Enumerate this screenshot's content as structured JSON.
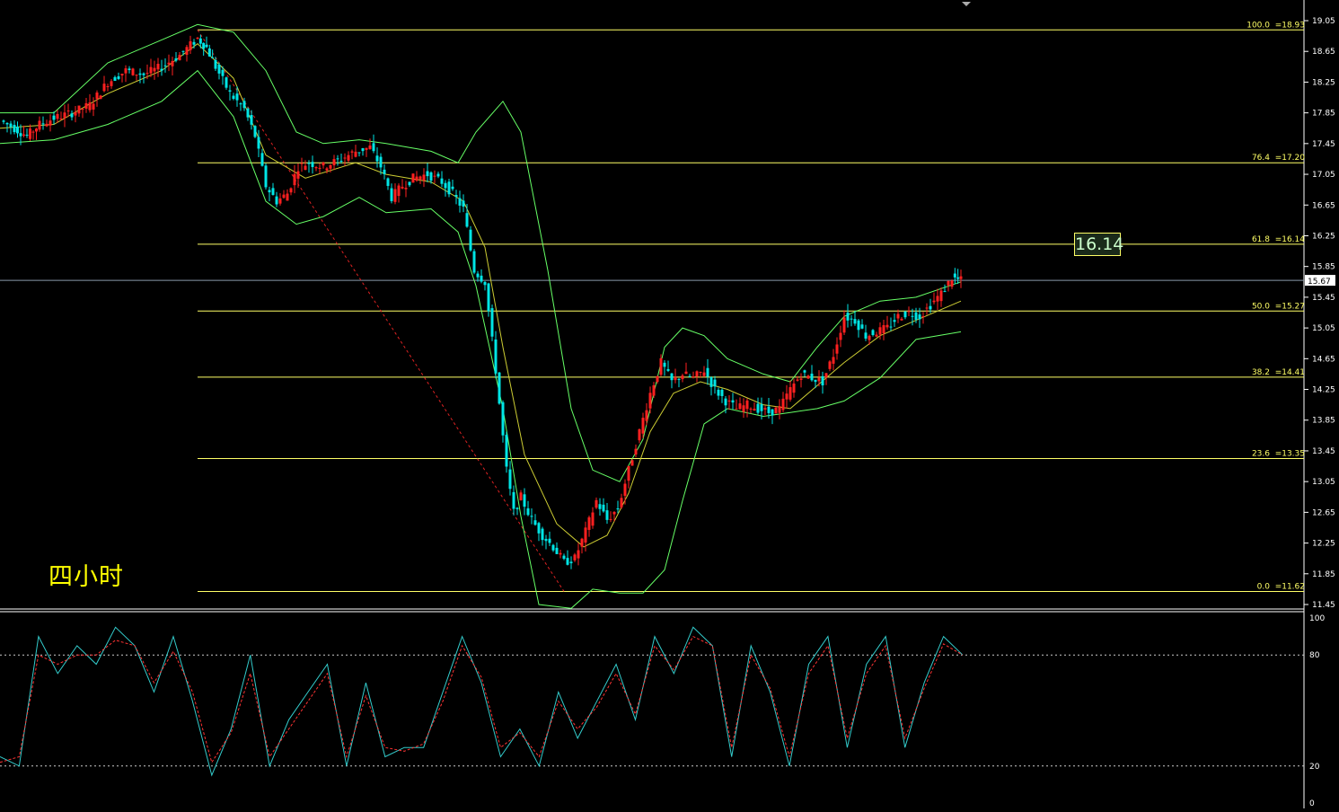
{
  "timeframe_label": "四小时",
  "price_marker": "16.14",
  "current_price_tag": "15.67",
  "colors": {
    "background": "#000000",
    "candle_up": "#ff2020",
    "candle_down": "#00e5e5",
    "fib_line": "#ffff66",
    "bollinger": "#66ff66",
    "stoch_k": "#33cccc",
    "stoch_d": "#ff3333",
    "axis_text": "#ffffff"
  },
  "chart_data": [
    {
      "type": "candlestick",
      "title": "",
      "ylim": [
        11.45,
        19.2
      ],
      "y_ticks": [
        "19.05",
        "18.65",
        "18.25",
        "17.85",
        "17.45",
        "17.05",
        "16.65",
        "16.25",
        "15.85",
        "15.45",
        "15.05",
        "14.65",
        "14.25",
        "13.85",
        "13.45",
        "13.05",
        "12.65",
        "12.25",
        "11.85",
        "11.45"
      ],
      "last_price": 15.67,
      "fibonacci_levels": [
        {
          "label": "100.0",
          "price_text": "=18.93",
          "value": 18.93
        },
        {
          "label": "76.4",
          "price_text": "=17.20",
          "value": 17.2
        },
        {
          "label": "61.8",
          "price_text": "=16.14",
          "value": 16.14
        },
        {
          "label": "50.0",
          "price_text": "=15.27",
          "value": 15.27
        },
        {
          "label": "38.2",
          "price_text": "=14.41",
          "value": 14.41
        },
        {
          "label": "23.6",
          "price_text": "=13.35",
          "value": 13.35
        },
        {
          "label": "0.0",
          "price_text": "=11.62",
          "value": 11.62
        }
      ],
      "close_path": [
        [
          0,
          17.75
        ],
        [
          8,
          17.65
        ],
        [
          15,
          17.55
        ],
        [
          22,
          17.7
        ],
        [
          30,
          17.78
        ],
        [
          40,
          17.85
        ],
        [
          50,
          17.95
        ],
        [
          60,
          18.25
        ],
        [
          70,
          18.4
        ],
        [
          80,
          18.35
        ],
        [
          90,
          18.45
        ],
        [
          100,
          18.6
        ],
        [
          110,
          18.82
        ],
        [
          115,
          18.7
        ],
        [
          120,
          18.45
        ],
        [
          128,
          18.1
        ],
        [
          136,
          17.9
        ],
        [
          142,
          17.55
        ],
        [
          148,
          16.9
        ],
        [
          154,
          16.7
        ],
        [
          160,
          16.8
        ],
        [
          166,
          17.15
        ],
        [
          172,
          17.2
        ],
        [
          180,
          17.15
        ],
        [
          190,
          17.25
        ],
        [
          198,
          17.35
        ],
        [
          206,
          17.4
        ],
        [
          212,
          17.15
        ],
        [
          218,
          16.75
        ],
        [
          224,
          16.9
        ],
        [
          230,
          17.0
        ],
        [
          238,
          17.05
        ],
        [
          246,
          16.95
        ],
        [
          252,
          16.8
        ],
        [
          258,
          16.6
        ],
        [
          264,
          15.8
        ],
        [
          270,
          15.65
        ],
        [
          276,
          14.5
        ],
        [
          282,
          13.2
        ],
        [
          286,
          12.65
        ],
        [
          290,
          12.85
        ],
        [
          296,
          12.55
        ],
        [
          302,
          12.35
        ],
        [
          308,
          12.2
        ],
        [
          314,
          12.0
        ],
        [
          320,
          12.05
        ],
        [
          326,
          12.4
        ],
        [
          332,
          12.8
        ],
        [
          338,
          12.55
        ],
        [
          344,
          12.7
        ],
        [
          350,
          13.2
        ],
        [
          356,
          13.7
        ],
        [
          362,
          14.2
        ],
        [
          368,
          14.6
        ],
        [
          374,
          14.35
        ],
        [
          380,
          14.45
        ],
        [
          386,
          14.4
        ],
        [
          392,
          14.5
        ],
        [
          398,
          14.25
        ],
        [
          404,
          14.1
        ],
        [
          410,
          14.0
        ],
        [
          416,
          14.05
        ],
        [
          422,
          14.0
        ],
        [
          428,
          13.95
        ],
        [
          434,
          14.0
        ],
        [
          440,
          14.25
        ],
        [
          446,
          14.45
        ],
        [
          452,
          14.4
        ],
        [
          458,
          14.35
        ],
        [
          464,
          14.7
        ],
        [
          470,
          15.2
        ],
        [
          476,
          15.15
        ],
        [
          482,
          14.95
        ],
        [
          488,
          15.0
        ],
        [
          494,
          15.05
        ],
        [
          500,
          15.2
        ],
        [
          506,
          15.25
        ],
        [
          512,
          15.2
        ],
        [
          518,
          15.35
        ],
        [
          524,
          15.5
        ],
        [
          530,
          15.7
        ],
        [
          535,
          15.67
        ]
      ],
      "bollinger_mid_path": [
        [
          0,
          17.65
        ],
        [
          30,
          17.7
        ],
        [
          60,
          18.1
        ],
        [
          90,
          18.4
        ],
        [
          110,
          18.75
        ],
        [
          130,
          18.3
        ],
        [
          148,
          17.3
        ],
        [
          170,
          17.0
        ],
        [
          198,
          17.2
        ],
        [
          215,
          17.05
        ],
        [
          240,
          16.95
        ],
        [
          258,
          16.7
        ],
        [
          270,
          16.1
        ],
        [
          280,
          14.8
        ],
        [
          292,
          13.4
        ],
        [
          310,
          12.5
        ],
        [
          325,
          12.2
        ],
        [
          338,
          12.35
        ],
        [
          350,
          12.9
        ],
        [
          362,
          13.7
        ],
        [
          375,
          14.2
        ],
        [
          390,
          14.35
        ],
        [
          405,
          14.25
        ],
        [
          425,
          14.05
        ],
        [
          440,
          14.0
        ],
        [
          455,
          14.3
        ],
        [
          470,
          14.6
        ],
        [
          490,
          14.95
        ],
        [
          510,
          15.15
        ],
        [
          535,
          15.4
        ]
      ],
      "bollinger_upper_path": [
        [
          0,
          17.85
        ],
        [
          30,
          17.85
        ],
        [
          60,
          18.5
        ],
        [
          90,
          18.8
        ],
        [
          110,
          19.0
        ],
        [
          130,
          18.9
        ],
        [
          148,
          18.4
        ],
        [
          165,
          17.6
        ],
        [
          180,
          17.45
        ],
        [
          200,
          17.5
        ],
        [
          215,
          17.45
        ],
        [
          240,
          17.35
        ],
        [
          255,
          17.2
        ],
        [
          265,
          17.6
        ],
        [
          280,
          18.0
        ],
        [
          290,
          17.6
        ],
        [
          305,
          15.8
        ],
        [
          318,
          14.0
        ],
        [
          330,
          13.2
        ],
        [
          345,
          13.05
        ],
        [
          358,
          13.6
        ],
        [
          370,
          14.8
        ],
        [
          380,
          15.05
        ],
        [
          392,
          14.95
        ],
        [
          405,
          14.65
        ],
        [
          425,
          14.45
        ],
        [
          440,
          14.35
        ],
        [
          455,
          14.8
        ],
        [
          470,
          15.2
        ],
        [
          490,
          15.4
        ],
        [
          510,
          15.45
        ],
        [
          535,
          15.65
        ]
      ],
      "bollinger_lower_path": [
        [
          0,
          17.45
        ],
        [
          30,
          17.5
        ],
        [
          60,
          17.7
        ],
        [
          90,
          18.0
        ],
        [
          110,
          18.4
        ],
        [
          130,
          17.8
        ],
        [
          148,
          16.7
        ],
        [
          165,
          16.4
        ],
        [
          180,
          16.5
        ],
        [
          200,
          16.75
        ],
        [
          215,
          16.55
        ],
        [
          240,
          16.6
        ],
        [
          255,
          16.3
        ],
        [
          265,
          15.6
        ],
        [
          280,
          14.0
        ],
        [
          290,
          12.6
        ],
        [
          300,
          11.45
        ],
        [
          318,
          11.4
        ],
        [
          330,
          11.65
        ],
        [
          345,
          11.6
        ],
        [
          358,
          11.6
        ],
        [
          370,
          11.9
        ],
        [
          380,
          12.8
        ],
        [
          392,
          13.8
        ],
        [
          405,
          14.0
        ],
        [
          425,
          13.9
        ],
        [
          440,
          13.95
        ],
        [
          455,
          14.0
        ],
        [
          470,
          14.1
        ],
        [
          490,
          14.4
        ],
        [
          510,
          14.9
        ],
        [
          535,
          15.0
        ]
      ],
      "fib_connector_line": [
        [
          110,
          18.93
        ],
        [
          314,
          11.62
        ]
      ]
    },
    {
      "type": "line",
      "title": "",
      "ylim": [
        0,
        100
      ],
      "y_ticks": [
        "100",
        "80",
        "20",
        "0"
      ],
      "reference_levels": [
        80,
        20
      ],
      "series": [
        {
          "values": [
            25,
            20,
            90,
            70,
            85,
            75,
            95,
            85,
            60,
            90,
            55,
            15,
            40,
            80,
            20,
            45,
            60,
            75,
            20,
            65,
            25,
            30,
            30,
            60,
            90,
            65,
            25,
            40,
            20,
            60,
            35,
            55,
            75,
            45,
            90,
            70,
            95,
            85,
            25,
            85,
            60,
            20,
            75,
            90,
            30,
            75,
            90,
            30,
            65,
            90,
            80
          ]
        },
        {
          "values": [
            22,
            25,
            80,
            75,
            80,
            80,
            88,
            85,
            65,
            82,
            60,
            22,
            38,
            70,
            25,
            40,
            55,
            70,
            25,
            58,
            30,
            28,
            32,
            55,
            85,
            68,
            30,
            38,
            25,
            55,
            40,
            52,
            70,
            48,
            85,
            72,
            90,
            85,
            30,
            80,
            62,
            25,
            70,
            85,
            35,
            70,
            85,
            35,
            62,
            86,
            80
          ]
        }
      ]
    }
  ]
}
